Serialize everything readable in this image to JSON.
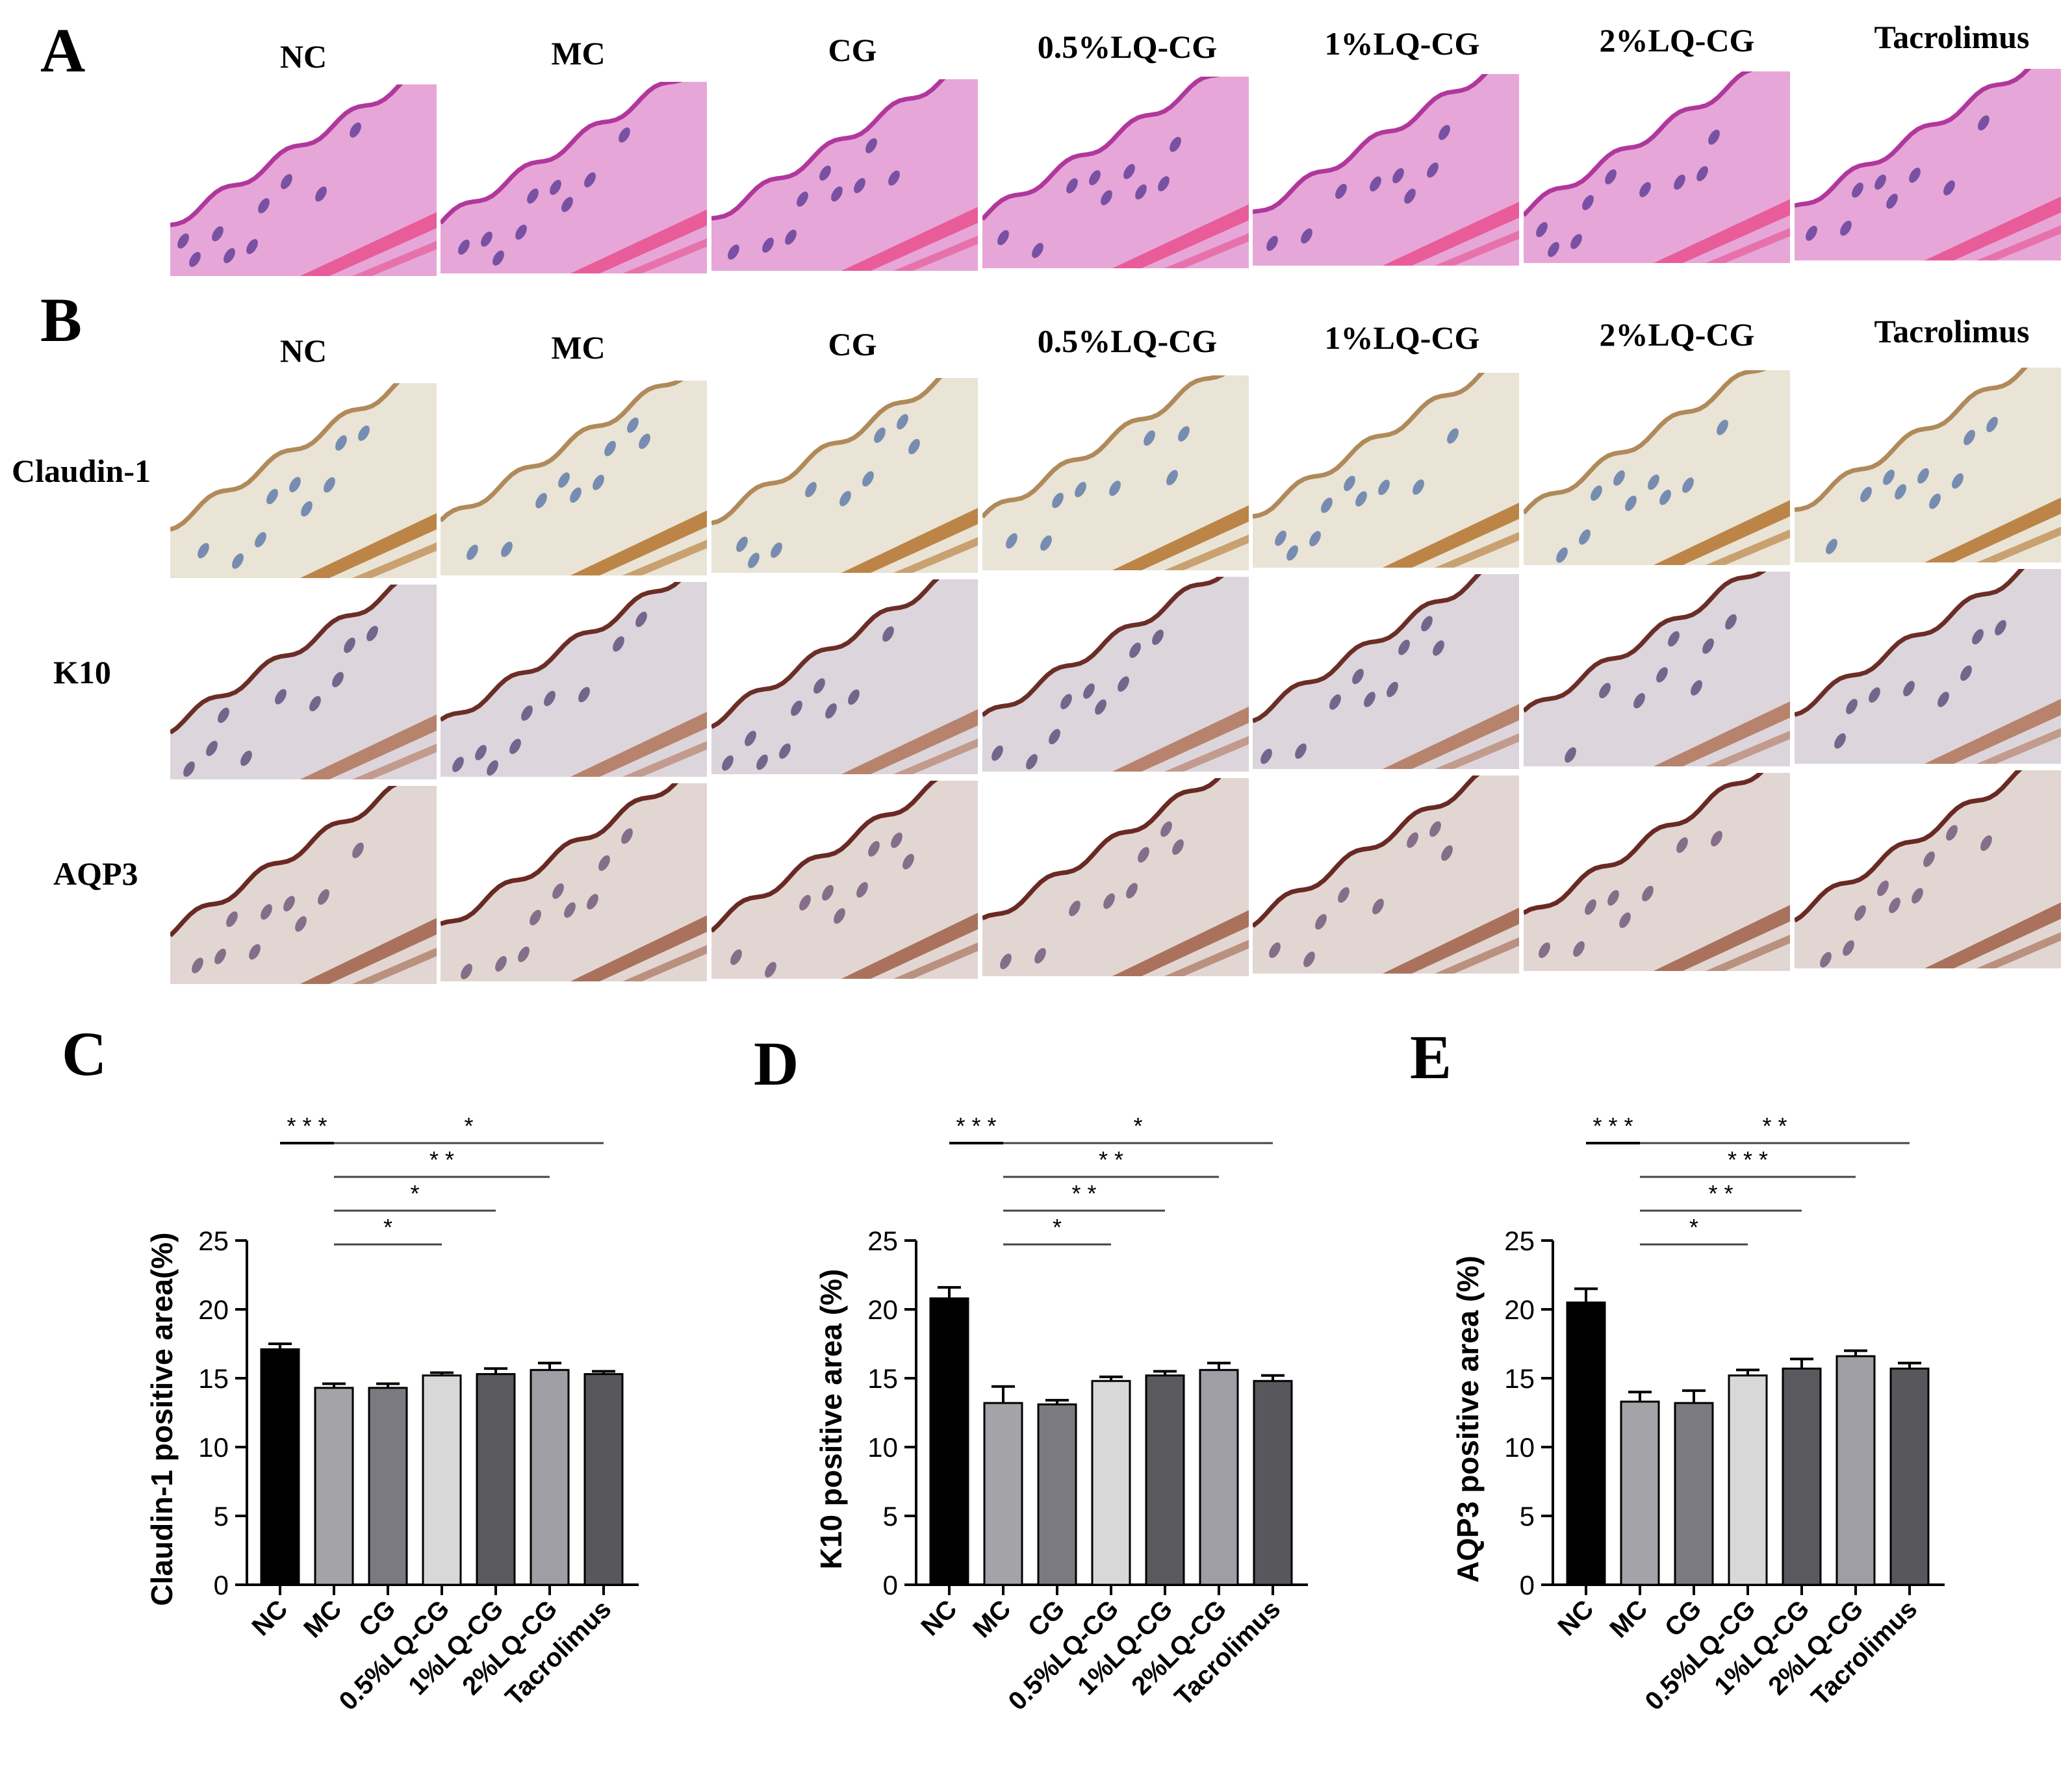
{
  "panels": {
    "a": "A",
    "b": "B",
    "c": "C",
    "d": "D",
    "e": "E"
  },
  "groups": [
    "NC",
    "MC",
    "CG",
    "0.5%LQ-CG",
    "1%LQ-CG",
    "2%LQ-CG",
    "Tacrolimus"
  ],
  "he_row": {
    "stain_colors": {
      "tissue": "#e7a6d8",
      "epidermis": "#b0389c",
      "follicle": "#5c3c97",
      "muscle": "#e8508e"
    }
  },
  "ihc_rows": [
    {
      "label": "Claudin-1",
      "stain_colors": {
        "tissue": "#e9e4d5",
        "epidermis": "#b08a5a",
        "follicle": "#5a76a8",
        "muscle": "#b4742e"
      }
    },
    {
      "label": "K10",
      "stain_colors": {
        "tissue": "#ddd5dc",
        "epidermis": "#6b2e26",
        "follicle": "#5a4878",
        "muscle": "#b07458"
      }
    },
    {
      "label": "AQP3",
      "stain_colors": {
        "tissue": "#e2d6d2",
        "epidermis": "#6a2a24",
        "follicle": "#6d5478",
        "muscle": "#a06048"
      }
    }
  ],
  "chart_data": [
    {
      "type": "bar",
      "panel": "C",
      "categories": [
        "NC",
        "MC",
        "CG",
        "0.5%LQ-CG",
        "1%LQ-CG",
        "2%LQ-CG",
        "Tacrolimus"
      ],
      "values": [
        17.1,
        14.3,
        14.3,
        15.2,
        15.3,
        15.6,
        15.3
      ],
      "errors": [
        0.4,
        0.3,
        0.3,
        0.2,
        0.4,
        0.5,
        0.2
      ],
      "bar_colors": [
        "#000000",
        "#a3a3a8",
        "#7a7a80",
        "#d8d8d8",
        "#5a5a5e",
        "#9e9ea4",
        "#58585c"
      ],
      "ylabel": "Claudin-1 positive area(%)",
      "ylim": [
        0,
        25
      ],
      "yticks": [
        "0",
        "5",
        "10",
        "15",
        "20",
        "25"
      ],
      "significance": [
        {
          "from": "NC",
          "to": "MC",
          "label": "* * *"
        },
        {
          "from": "MC",
          "to": "Tacrolimus",
          "label": "*"
        },
        {
          "from": "MC",
          "to": "2%LQ-CG",
          "label": "* *"
        },
        {
          "from": "MC",
          "to": "1%LQ-CG",
          "label": "*"
        },
        {
          "from": "MC",
          "to": "0.5%LQ-CG",
          "label": "*"
        }
      ]
    },
    {
      "type": "bar",
      "panel": "D",
      "categories": [
        "NC",
        "MC",
        "CG",
        "0.5%LQ-CG",
        "1%LQ-CG",
        "2%LQ-CG",
        "Tacrolimus"
      ],
      "values": [
        20.8,
        13.2,
        13.1,
        14.8,
        15.2,
        15.6,
        14.8
      ],
      "errors": [
        0.8,
        1.2,
        0.3,
        0.3,
        0.3,
        0.5,
        0.4
      ],
      "bar_colors": [
        "#000000",
        "#a3a3a8",
        "#7a7a80",
        "#d8d8d8",
        "#5a5a5e",
        "#9e9ea4",
        "#58585c"
      ],
      "ylabel": "K10 positive area (%)",
      "ylim": [
        0,
        25
      ],
      "yticks": [
        "0",
        "5",
        "10",
        "15",
        "20",
        "25"
      ],
      "significance": [
        {
          "from": "NC",
          "to": "MC",
          "label": "* * *"
        },
        {
          "from": "MC",
          "to": "Tacrolimus",
          "label": "*"
        },
        {
          "from": "MC",
          "to": "2%LQ-CG",
          "label": "* *"
        },
        {
          "from": "MC",
          "to": "1%LQ-CG",
          "label": "* *"
        },
        {
          "from": "MC",
          "to": "0.5%LQ-CG",
          "label": "*"
        }
      ]
    },
    {
      "type": "bar",
      "panel": "E",
      "categories": [
        "NC",
        "MC",
        "CG",
        "0.5%LQ-CG",
        "1%LQ-CG",
        "2%LQ-CG",
        "Tacrolimus"
      ],
      "values": [
        20.5,
        13.3,
        13.2,
        15.2,
        15.7,
        16.6,
        15.7
      ],
      "errors": [
        1.0,
        0.7,
        0.9,
        0.4,
        0.7,
        0.4,
        0.4
      ],
      "bar_colors": [
        "#000000",
        "#a3a3a8",
        "#7a7a80",
        "#d8d8d8",
        "#5a5a5e",
        "#9e9ea4",
        "#58585c"
      ],
      "ylabel": "AQP3 positive area (%)",
      "ylim": [
        0,
        25
      ],
      "yticks": [
        "0",
        "5",
        "10",
        "15",
        "20",
        "25"
      ],
      "significance": [
        {
          "from": "NC",
          "to": "MC",
          "label": "* * *"
        },
        {
          "from": "MC",
          "to": "Tacrolimus",
          "label": "* *"
        },
        {
          "from": "MC",
          "to": "2%LQ-CG",
          "label": "* * *"
        },
        {
          "from": "MC",
          "to": "1%LQ-CG",
          "label": "* *"
        },
        {
          "from": "MC",
          "to": "0.5%LQ-CG",
          "label": "*"
        }
      ]
    }
  ]
}
